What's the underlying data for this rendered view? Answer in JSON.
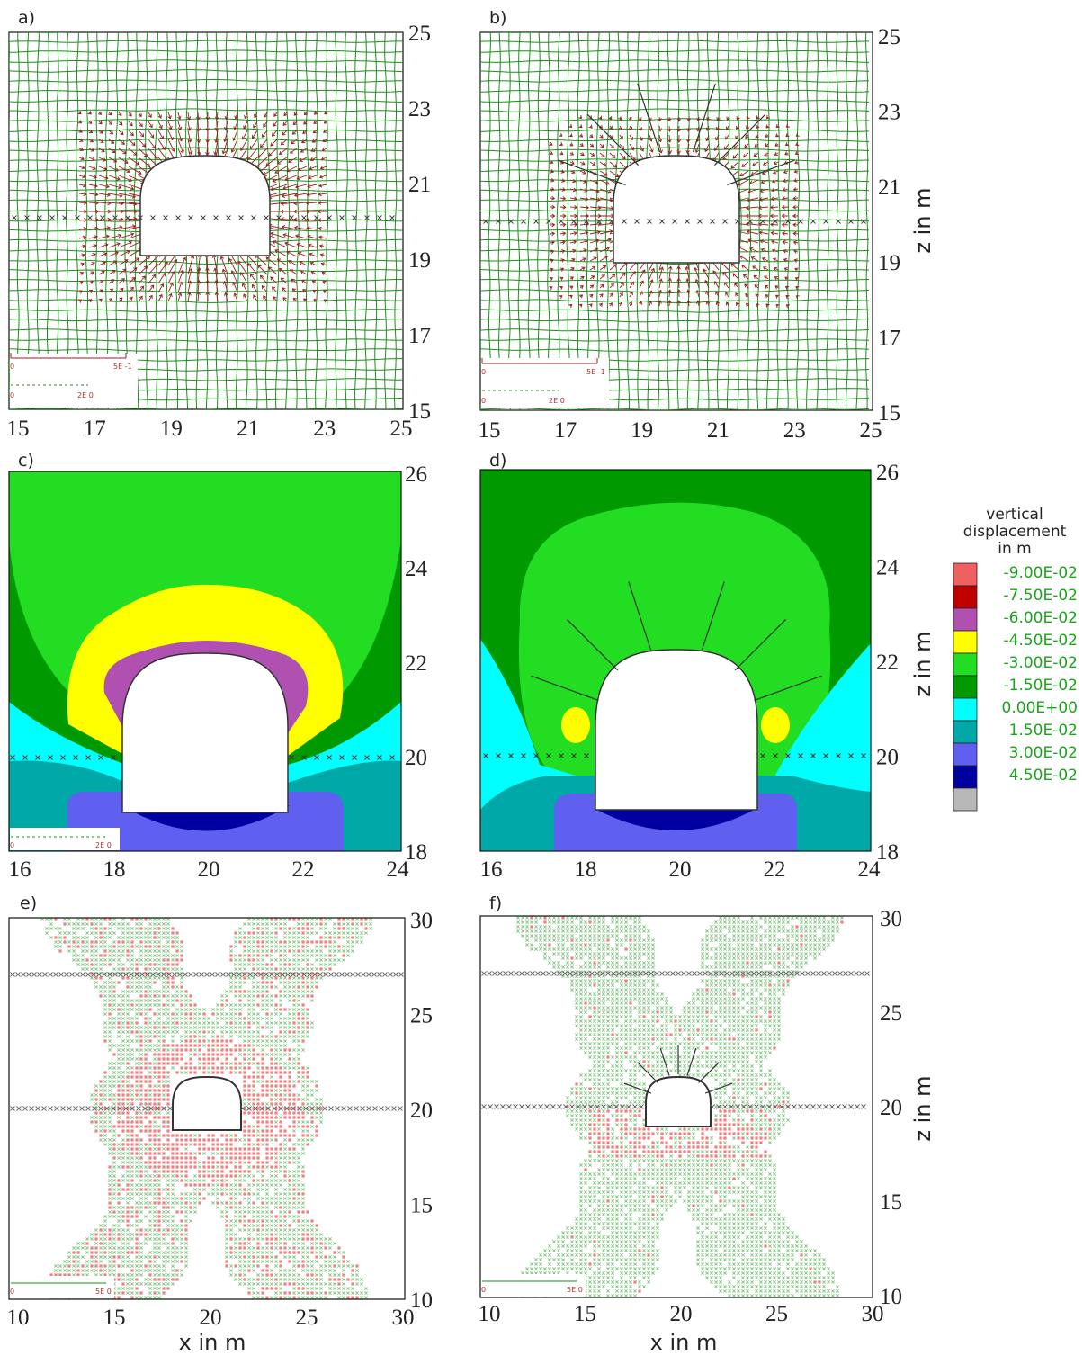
{
  "panels": [
    {
      "id": "a",
      "label": "a)",
      "kind": "displacement-vectors",
      "x_ticks": [
        "15",
        "17",
        "19",
        "21",
        "23",
        "25"
      ],
      "y_ticks": [
        "25",
        "23",
        "21",
        "19",
        "17",
        "15"
      ],
      "scale_labels": [
        "0",
        "5E -1",
        "0",
        "2E 0"
      ],
      "show_z_label": false,
      "show_x_label": false
    },
    {
      "id": "b",
      "label": "b)",
      "kind": "displacement-vectors-bolted",
      "x_ticks": [
        "15",
        "17",
        "19",
        "21",
        "23",
        "25"
      ],
      "y_ticks": [
        "25",
        "23",
        "21",
        "19",
        "17",
        "15"
      ],
      "scale_labels": [
        "0",
        "5E -1",
        "0",
        "2E 0"
      ],
      "show_z_label": true,
      "show_x_label": false
    },
    {
      "id": "c",
      "label": "c)",
      "kind": "vertical-displacement-contours",
      "x_ticks": [
        "16",
        "18",
        "20",
        "22",
        "24"
      ],
      "y_ticks": [
        "26",
        "24",
        "22",
        "20",
        "18"
      ],
      "scale_labels": [
        "0",
        "2E 0"
      ],
      "show_z_label": false,
      "show_x_label": false
    },
    {
      "id": "d",
      "label": "d)",
      "kind": "vertical-displacement-contours-bolted",
      "x_ticks": [
        "16",
        "18",
        "20",
        "22",
        "24"
      ],
      "y_ticks": [
        "26",
        "24",
        "22",
        "20",
        "18"
      ],
      "scale_labels": [],
      "show_z_label": true,
      "show_x_label": false
    },
    {
      "id": "e",
      "label": "e)",
      "kind": "plastic-zones",
      "x_ticks": [
        "10",
        "15",
        "20",
        "25",
        "30"
      ],
      "y_ticks": [
        "30",
        "25",
        "20",
        "15",
        "10"
      ],
      "scale_labels": [
        "0",
        "5E 0"
      ],
      "show_z_label": false,
      "show_x_label": true
    },
    {
      "id": "f",
      "label": "f)",
      "kind": "plastic-zones-bolted",
      "x_ticks": [
        "10",
        "15",
        "20",
        "25",
        "30"
      ],
      "y_ticks": [
        "30",
        "25",
        "20",
        "15",
        "10"
      ],
      "scale_labels": [
        "0",
        "5E 0"
      ],
      "show_z_label": true,
      "show_x_label": true
    }
  ],
  "axis": {
    "z_label": "z in m",
    "x_label": "x in m"
  },
  "legend": {
    "title_lines": [
      "vertical",
      "displacement",
      "in m"
    ],
    "items": [
      {
        "label": "-9.00E-02",
        "color": "#f06060"
      },
      {
        "label": "-7.50E-02",
        "color": "#c00000"
      },
      {
        "label": "-6.00E-02",
        "color": "#b050b0"
      },
      {
        "label": "-4.50E-02",
        "color": "#ffff00"
      },
      {
        "label": "-3.00E-02",
        "color": "#22dd22"
      },
      {
        "label": "-1.50E-02",
        "color": "#009a00"
      },
      {
        "label": "0.00E+00",
        "color": "#00ffff"
      },
      {
        "label": "1.50E-02",
        "color": "#00a8a8"
      },
      {
        "label": "3.00E-02",
        "color": "#6060f0"
      },
      {
        "label": "4.50E-02",
        "color": "#0000a0"
      },
      {
        "label": "",
        "color": "#b8b8b8"
      }
    ]
  },
  "colors": {
    "grid": "#1a8f1a",
    "vector": "#9a1e1e",
    "bolt": "#333333",
    "plastic_shear": "#7cc47c",
    "plastic_tension": "#f08080"
  }
}
